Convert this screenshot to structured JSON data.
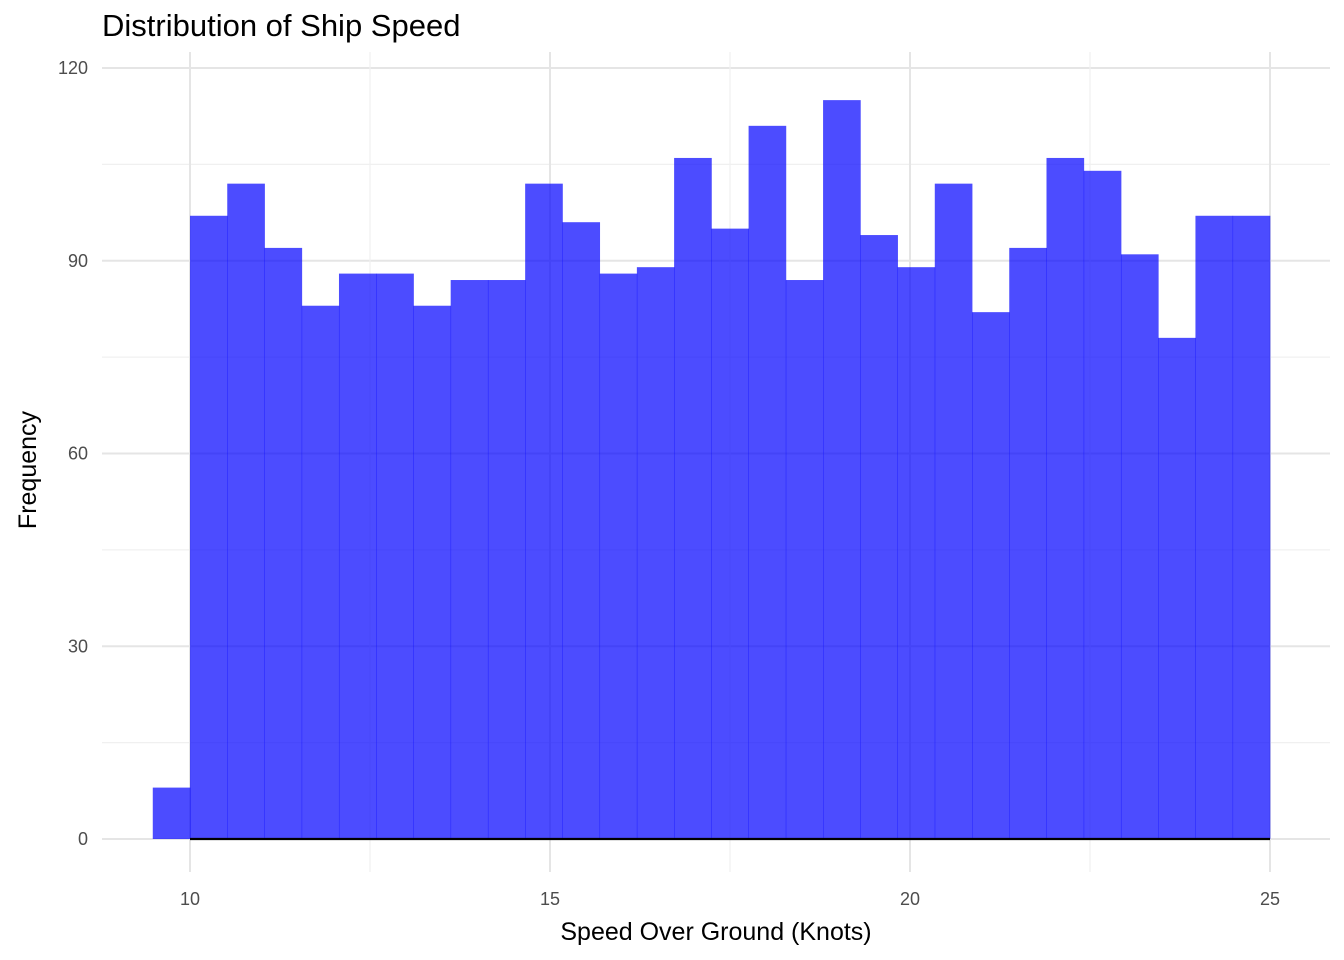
{
  "chart_data": {
    "type": "bar",
    "title": "Distribution of Ship Speed",
    "xlabel": "Speed Over Ground (Knots)",
    "ylabel": "Frequency",
    "xlim": [
      8.8,
      25.8
    ],
    "ylim": [
      -5,
      120
    ],
    "x_ticks": [
      10,
      15,
      20,
      25
    ],
    "y_ticks": [
      0,
      30,
      60,
      90,
      120
    ],
    "grid": true,
    "legend": "none",
    "bar_color": "#0000ff",
    "bar_opacity": 0.7,
    "bin_width": 0.5172,
    "bin_start": 9.483,
    "values": [
      8,
      97,
      102,
      92,
      83,
      88,
      88,
      83,
      87,
      87,
      102,
      96,
      88,
      89,
      106,
      95,
      111,
      87,
      115,
      94,
      89,
      102,
      82,
      92,
      106,
      104,
      91,
      78,
      97,
      97
    ],
    "density_line": {
      "x": [
        10,
        25
      ],
      "y": [
        0,
        0
      ],
      "color": "#000000"
    }
  }
}
